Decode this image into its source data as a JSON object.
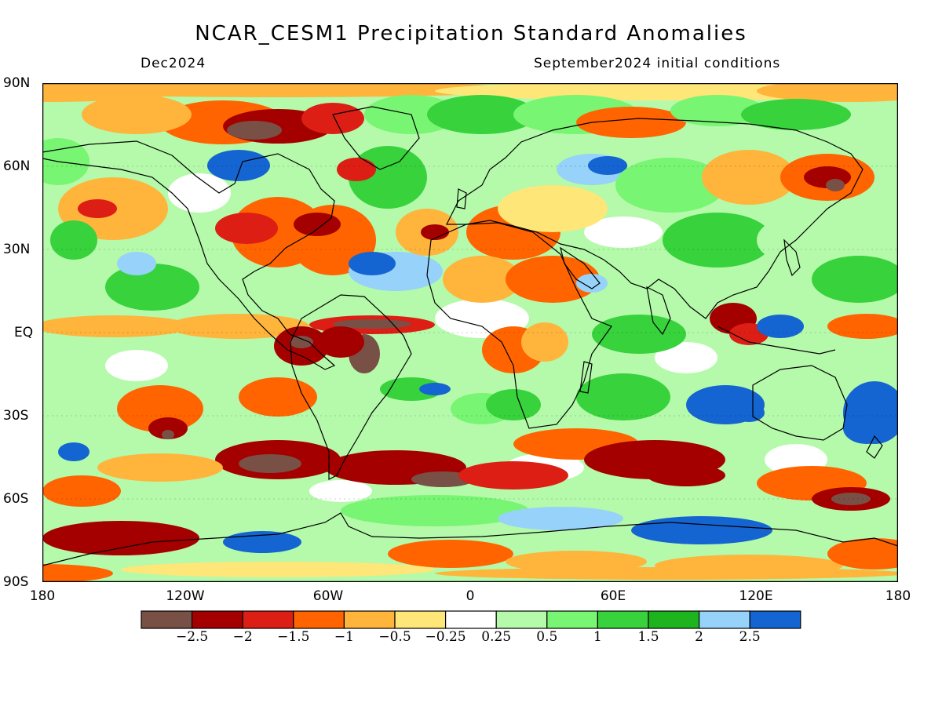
{
  "title": "NCAR_CESM1 Precipitation Standard Anomalies",
  "subtitle_left": "Dec2024",
  "subtitle_right": "September2024 initial conditions",
  "lat_labels": [
    "90N",
    "60N",
    "30N",
    "EQ",
    "30S",
    "60S",
    "90S"
  ],
  "lon_labels": [
    "180",
    "120W",
    "60W",
    "0",
    "60E",
    "120E",
    "180"
  ],
  "colorbar": {
    "labels": [
      "−2.5",
      "−2",
      "−1.5",
      "−1",
      "−0.5",
      "−0.25",
      "0.25",
      "0.5",
      "1",
      "1.5",
      "2",
      "2.5"
    ],
    "colors": [
      "#785046",
      "#a50000",
      "#dc1e14",
      "#ff6400",
      "#ffb43c",
      "#ffe678",
      "#ffffff",
      "#b4faaa",
      "#78f573",
      "#37d23c",
      "#1eb41e",
      "#96d2fa",
      "#1464d2"
    ]
  },
  "map": {
    "projection": "equirectangular",
    "lon_range": [
      -180,
      180
    ],
    "lat_range": [
      -90,
      90
    ],
    "colors": {
      "strong_dry": "#785046",
      "very_dry": "#a50000",
      "dry": "#dc1e14",
      "moderate_dry": "#ff6400",
      "mild_dry": "#ffb43c",
      "slight_dry": "#ffe678",
      "neutral": "#ffffff",
      "slight_wet": "#b4faaa",
      "mild_wet": "#78f573",
      "moderate_wet": "#37d23c",
      "wet": "#1eb41e",
      "very_wet": "#96d2fa",
      "strong_wet": "#1464d2"
    }
  }
}
